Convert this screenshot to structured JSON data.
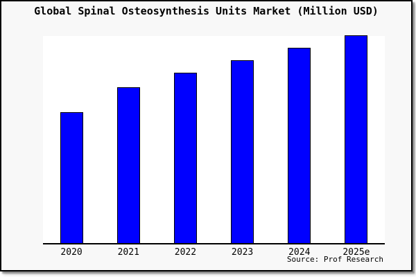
{
  "header": {
    "title": "Global Spinal Osteosynthesis Units Market (Million USD)"
  },
  "footer": {
    "source": "Source: Prof Research"
  },
  "colors": {
    "bar_fill": "#0000ff",
    "bar_border": "#000000",
    "frame_bg": "#f8f8f8",
    "plot_bg": "#ffffff",
    "axis": "#000000",
    "text": "#000000"
  },
  "chart_data": {
    "type": "bar",
    "title": "Global Spinal Osteosynthesis Units Market (Million USD)",
    "categories": [
      "2020",
      "2021",
      "2022",
      "2023",
      "2024",
      "2025e"
    ],
    "values": [
      63,
      75,
      82,
      88,
      94,
      100
    ],
    "xlabel": "",
    "ylabel": "",
    "ylim": [
      0,
      100
    ],
    "y_axis_shown": false,
    "value_labels_shown": false,
    "grid": false,
    "legend": "none",
    "note": "No y-axis ticks or data labels are rendered in the image; values are estimated relative heights with the tallest bar (2025e) = 100."
  }
}
